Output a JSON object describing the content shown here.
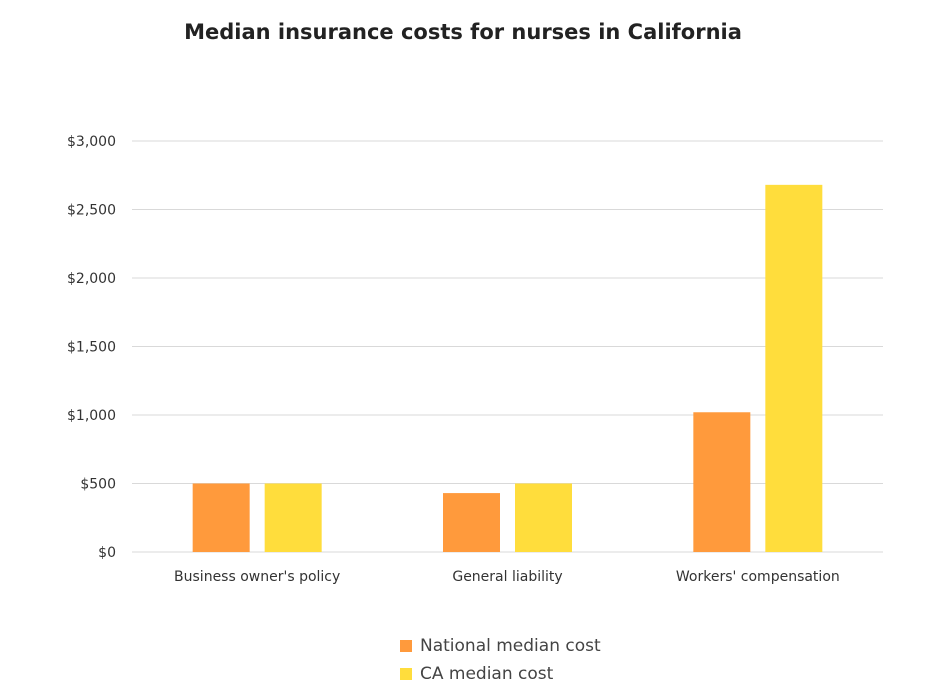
{
  "chart_data": {
    "type": "bar",
    "title": "Median insurance costs for nurses in California",
    "xlabel": "",
    "ylabel": "",
    "categories": [
      "Business owner's policy",
      "General liability",
      "Workers' compensation"
    ],
    "series": [
      {
        "name": "National median cost",
        "color": "#FF9A3C",
        "values": [
          500,
          430,
          1020
        ]
      },
      {
        "name": "CA median cost",
        "color": "#FFDD3C",
        "values": [
          500,
          500,
          2680
        ]
      }
    ],
    "ylim": [
      0,
      3000
    ],
    "yticks": [
      0,
      500,
      1000,
      1500,
      2000,
      2500,
      3000
    ],
    "ytick_labels": [
      "$0",
      "$500",
      "$1,000",
      "$1,500",
      "$2,000",
      "$2,500",
      "$3,000"
    ],
    "grid": true,
    "legend_position": "bottom"
  }
}
